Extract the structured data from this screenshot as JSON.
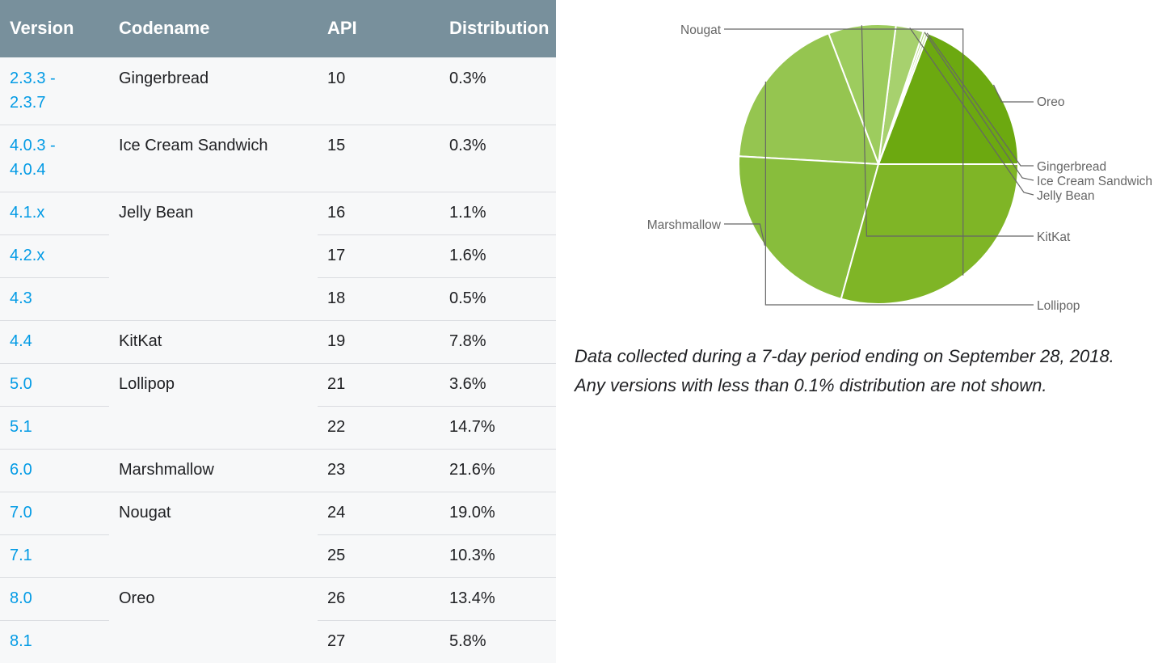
{
  "table": {
    "headers": {
      "version": "Version",
      "codename": "Codename",
      "api": "API",
      "distribution": "Distribution"
    },
    "groups": [
      {
        "codename": "Gingerbread",
        "rows": [
          {
            "version": "2.3.3 -\n2.3.7",
            "api": "10",
            "distribution": "0.3%"
          }
        ]
      },
      {
        "codename": "Ice Cream Sandwich",
        "rows": [
          {
            "version": "4.0.3 -\n4.0.4",
            "api": "15",
            "distribution": "0.3%"
          }
        ]
      },
      {
        "codename": "Jelly Bean",
        "rows": [
          {
            "version": "4.1.x",
            "api": "16",
            "distribution": "1.1%"
          },
          {
            "version": "4.2.x",
            "api": "17",
            "distribution": "1.6%"
          },
          {
            "version": "4.3",
            "api": "18",
            "distribution": "0.5%"
          }
        ]
      },
      {
        "codename": "KitKat",
        "rows": [
          {
            "version": "4.4",
            "api": "19",
            "distribution": "7.8%"
          }
        ]
      },
      {
        "codename": "Lollipop",
        "rows": [
          {
            "version": "5.0",
            "api": "21",
            "distribution": "3.6%"
          },
          {
            "version": "5.1",
            "api": "22",
            "distribution": "14.7%"
          }
        ]
      },
      {
        "codename": "Marshmallow",
        "rows": [
          {
            "version": "6.0",
            "api": "23",
            "distribution": "21.6%"
          }
        ]
      },
      {
        "codename": "Nougat",
        "rows": [
          {
            "version": "7.0",
            "api": "24",
            "distribution": "19.0%"
          },
          {
            "version": "7.1",
            "api": "25",
            "distribution": "10.3%"
          }
        ]
      },
      {
        "codename": "Oreo",
        "rows": [
          {
            "version": "8.0",
            "api": "26",
            "distribution": "13.4%"
          },
          {
            "version": "8.1",
            "api": "27",
            "distribution": "5.8%"
          }
        ]
      }
    ]
  },
  "chart_data": {
    "type": "pie",
    "categories": [
      "Oreo",
      "Gingerbread",
      "Ice Cream Sandwich",
      "Jelly Bean",
      "KitKat",
      "Lollipop",
      "Marshmallow",
      "Nougat"
    ],
    "values": [
      19.2,
      0.3,
      0.3,
      3.2,
      7.8,
      18.3,
      21.6,
      29.3
    ],
    "unit": "%",
    "colors": [
      "#6ca910",
      "#bedd93",
      "#b0d67d",
      "#a7d16e",
      "#9dcc5e",
      "#95c550",
      "#88bd3c",
      "#7fb526"
    ],
    "title": "",
    "legend": "none (labels with leader lines)"
  },
  "caption": {
    "line1": "Data collected during a 7-day period ending on September 28, 2018.",
    "line2": "Any versions with less than 0.1% distribution are not shown."
  }
}
